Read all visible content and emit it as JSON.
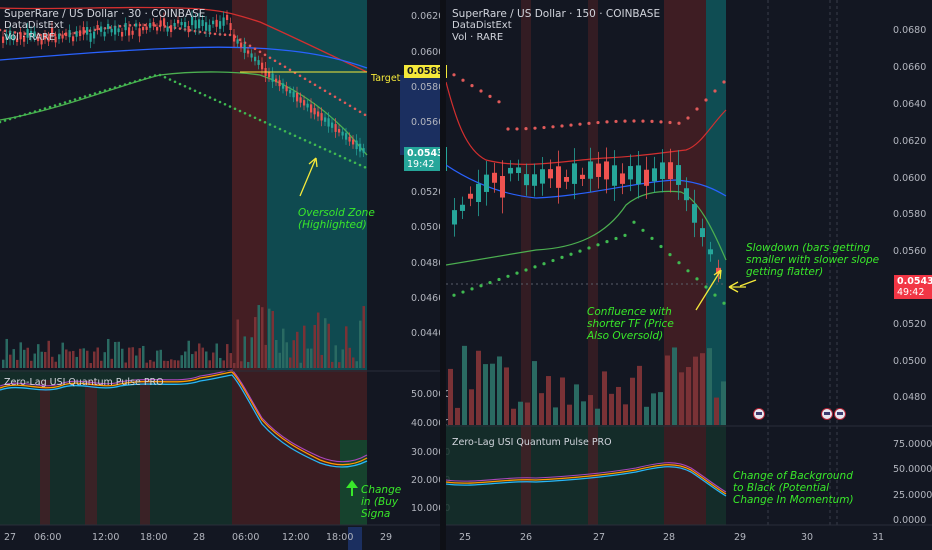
{
  "left_chart": {
    "title": "SuperRare / US Dollar · 30 · COINBASE",
    "ind1": "DataDistExt",
    "ind2": "Vol · RARE",
    "price_axis": [
      "0.0620",
      "0.0600",
      "0.0580",
      "0.0560",
      "0.0520",
      "0.0500",
      "0.0480",
      "0.0460",
      "0.0440"
    ],
    "target_price": "0.0589",
    "target_label": "Target",
    "last_price": "0.0543",
    "countdown": "19:42",
    "note": "Oversold Zone (Highlighted)",
    "osc_title": "Zero-Lag USI Quantum Pulse PRO",
    "osc_axis": [
      "50.0000",
      "40.0000",
      "30.0000",
      "20.0000",
      "10.0000"
    ],
    "osc_note": "Change in (Buy Signa",
    "time_axis": [
      "27",
      "06:00",
      "12:00",
      "18:00",
      "28",
      "06:00",
      "12:00",
      "18:00",
      "29"
    ]
  },
  "right_chart": {
    "title": "SuperRare / US Dollar · 150 · COINBASE",
    "ind1": "DataDistExt",
    "ind2": "Vol · RARE",
    "price_axis": [
      "0.0680",
      "0.0660",
      "0.0640",
      "0.0620",
      "0.0600",
      "0.0580",
      "0.0560",
      "0.0520",
      "0.0500",
      "0.0480"
    ],
    "last_price": "0.0543",
    "countdown": "49:42",
    "note_slowdown": "Slowdown (bars getting smaller with slower slope getting flatter)",
    "note_confluence": "Confluence with shorter TF (Price Also Oversold)",
    "osc_title": "Zero-Lag USI Quantum Pulse PRO",
    "osc_axis": [
      "75.0000",
      "50.0000",
      "25.0000",
      "0.0000"
    ],
    "osc_note": "Change of Background to Black (Potential Change In Momentum)",
    "time_axis": [
      "25",
      "26",
      "27",
      "28",
      "29",
      "30",
      "31"
    ]
  },
  "colors": {
    "bg": "#131722",
    "bull": "#26a69a",
    "bear": "#ef5350",
    "annotation": "#39e82a",
    "target": "#f5e93a",
    "teal_zone": "#0f4d53",
    "red_zone": "#4a1f24"
  }
}
